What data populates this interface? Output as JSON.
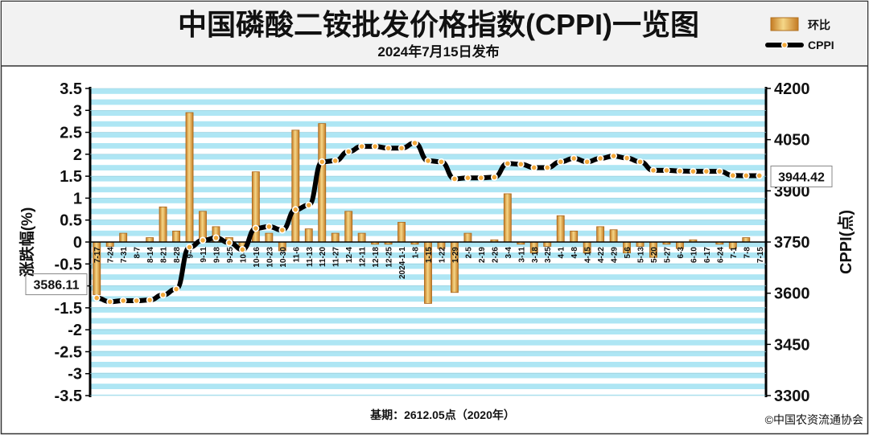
{
  "header": {
    "title": "中国磷酸二铵批发价格指数(CPPI)一览图",
    "subtitle": "2024年7月15日发布"
  },
  "legend": {
    "bar_label": "环比",
    "line_label": "CPPI"
  },
  "footer": {
    "base": "基期：2612.05点（2020年）",
    "copyright": "©中国农资流通协会"
  },
  "colors": {
    "background": "#f2f2f2",
    "plot_stripe_a": "#aee6f4",
    "plot_stripe_b": "#ffffff",
    "bar": "#e09a3c",
    "bar_highlight": "#f5d788",
    "line": "#000000",
    "marker": "#f2a93b"
  },
  "chart_data": {
    "type": "bar",
    "title": "中国磷酸二铵批发价格指数(CPPI)一览图",
    "subtitle": "2024年7月15日发布",
    "ylabel": "涨跌幅(%)",
    "y2label": "CPPI(点)",
    "ylim": [
      -3.5,
      3.5
    ],
    "y2lim": [
      3300,
      4200
    ],
    "yticks": [
      "3.5",
      "3",
      "2.5",
      "2",
      "1.5",
      "1",
      "0.5",
      "0",
      "-0.5",
      "-1",
      "-1.5",
      "-2",
      "-2.5",
      "-3",
      "-3.5"
    ],
    "y2ticks": [
      "4200",
      "4050",
      "3900",
      "3750",
      "3600",
      "3450",
      "3300"
    ],
    "grid": true,
    "legend_position": "top-right",
    "categories": [
      "7-17",
      "7-24",
      "7-31",
      "8-7",
      "8-14",
      "8-21",
      "8-28",
      "9-4",
      "9-11",
      "9-18",
      "9-25",
      "10-9",
      "10-16",
      "10-23",
      "10-30",
      "11-6",
      "11-13",
      "11-20",
      "11-27",
      "12-4",
      "12-11",
      "12-18",
      "12-25",
      "2024-1-1",
      "1-8",
      "1-15",
      "1-22",
      "1-29",
      "2-5",
      "2-19",
      "2-26",
      "3-4",
      "3-11",
      "3-18",
      "3-25",
      "4-1",
      "4-8",
      "4-15",
      "4-22",
      "4-29",
      "5-6",
      "5-13",
      "5-20",
      "5-27",
      "6-3",
      "6-10",
      "6-17",
      "6-24",
      "7-1",
      "7-8",
      "7-15"
    ],
    "series": [
      {
        "name": "环比",
        "axis": "left",
        "values": [
          -1.2,
          -0.1,
          0.2,
          0.0,
          0.1,
          0.8,
          0.25,
          2.95,
          0.7,
          0.35,
          0.1,
          -0.2,
          1.6,
          0.2,
          -0.2,
          2.55,
          0.3,
          2.7,
          0.2,
          0.7,
          0.2,
          -0.05,
          -0.05,
          0.45,
          -0.05,
          -1.4,
          -0.15,
          -1.15,
          0.2,
          0.0,
          0.05,
          1.1,
          -0.05,
          -0.25,
          -0.1,
          0.6,
          0.25,
          -0.25,
          0.35,
          0.28,
          -0.25,
          -0.1,
          -0.35,
          -0.05,
          -0.15,
          0.05,
          0.0,
          -0.05,
          -0.15,
          0.1,
          0.0
        ]
      },
      {
        "name": "CPPI",
        "axis": "right",
        "values": [
          3586.11,
          3575,
          3578,
          3578,
          3580,
          3595,
          3612,
          3735,
          3755,
          3762,
          3748,
          3728,
          3790,
          3795,
          3785,
          3845,
          3858,
          3985,
          3988,
          4015,
          4030,
          4030,
          4025,
          4025,
          4040,
          3988,
          3985,
          3935,
          3938,
          3938,
          3940,
          3980,
          3978,
          3968,
          3968,
          3985,
          3995,
          3985,
          3995,
          4002,
          3996,
          3985,
          3960,
          3960,
          3958,
          3957,
          3957,
          3957,
          3945,
          3944.42,
          3944.42
        ]
      }
    ],
    "annotations": [
      "3586.11",
      "3944.42"
    ]
  }
}
